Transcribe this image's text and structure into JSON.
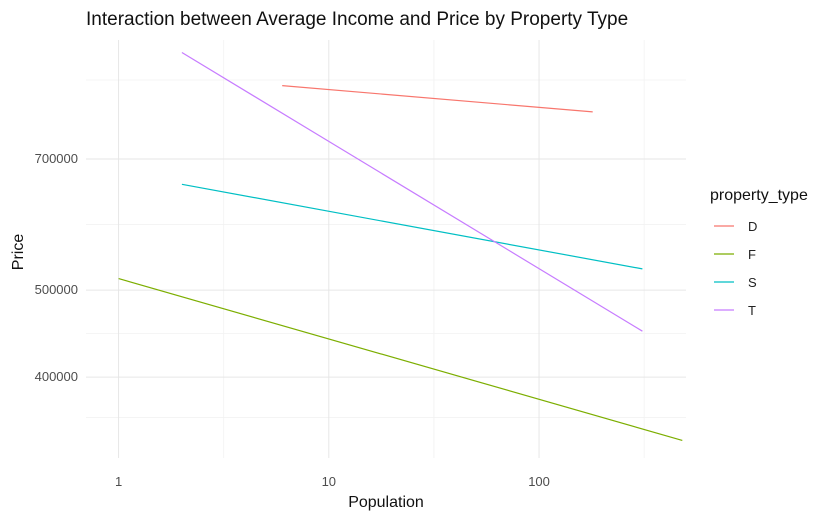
{
  "chart_data": {
    "type": "line",
    "title": "Interaction between Average Income and Price by Property Type",
    "xlabel": "Population",
    "ylabel": "Price",
    "x_scale": "log10",
    "y_scale": "log10",
    "xlim": [
      0.7,
      500
    ],
    "ylim": [
      325000,
      950000
    ],
    "x_ticks": [
      1,
      10,
      100
    ],
    "x_tick_labels": [
      "1",
      "10",
      "100"
    ],
    "y_ticks": [
      400000,
      500000,
      700000
    ],
    "y_tick_labels": [
      "400000",
      "500000",
      "700000"
    ],
    "grid": true,
    "legend": {
      "title": "property_type",
      "position": "right"
    },
    "series": [
      {
        "name": "D",
        "color": "#F8766D",
        "x": [
          6,
          180
        ],
        "y": [
          845000,
          790000
        ]
      },
      {
        "name": "F",
        "color": "#7CAE00",
        "x": [
          1,
          480
        ],
        "y": [
          515000,
          340000
        ]
      },
      {
        "name": "S",
        "color": "#00BFC4",
        "x": [
          2,
          310
        ],
        "y": [
          656000,
          528000
        ]
      },
      {
        "name": "T",
        "color": "#C77CFF",
        "x": [
          2,
          310
        ],
        "y": [
          920000,
          450000
        ]
      }
    ]
  }
}
